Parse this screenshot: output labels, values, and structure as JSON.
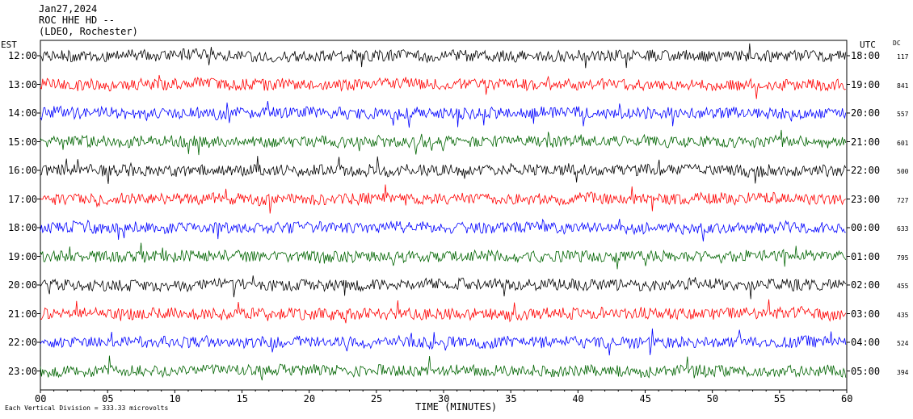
{
  "header": {
    "date": "Jan27,2024",
    "station": "ROC HHE HD --",
    "network": "(LDEO, Rochester)"
  },
  "chart_data": {
    "type": "line",
    "title": "",
    "xlabel": "TIME (MINUTES)",
    "left_axis_label": "EST",
    "right_axis_label": "UTC",
    "dc_label": "DC",
    "xlim": [
      0,
      60
    ],
    "x_ticks": [
      "00",
      "05",
      "10",
      "15",
      "20",
      "25",
      "30",
      "35",
      "40",
      "45",
      "50",
      "55",
      "60"
    ],
    "trace_colors": [
      "#000000",
      "#ff0000",
      "#0000ff",
      "#006400"
    ],
    "rows": [
      {
        "est": "12:00",
        "utc": "18:00",
        "dc": "117"
      },
      {
        "est": "13:00",
        "utc": "19:00",
        "dc": "841"
      },
      {
        "est": "14:00",
        "utc": "20:00",
        "dc": "557"
      },
      {
        "est": "15:00",
        "utc": "21:00",
        "dc": "601"
      },
      {
        "est": "16:00",
        "utc": "22:00",
        "dc": "500"
      },
      {
        "est": "17:00",
        "utc": "23:00",
        "dc": "727"
      },
      {
        "est": "18:00",
        "utc": "00:00",
        "dc": "633"
      },
      {
        "est": "19:00",
        "utc": "01:00",
        "dc": "795"
      },
      {
        "est": "20:00",
        "utc": "02:00",
        "dc": "455"
      },
      {
        "est": "21:00",
        "utc": "03:00",
        "dc": "435"
      },
      {
        "est": "22:00",
        "utc": "04:00",
        "dc": "524"
      },
      {
        "est": "23:00",
        "utc": "05:00",
        "dc": "394"
      }
    ],
    "scale_note": "Each Vertical Division =  333.33 microvolts"
  }
}
